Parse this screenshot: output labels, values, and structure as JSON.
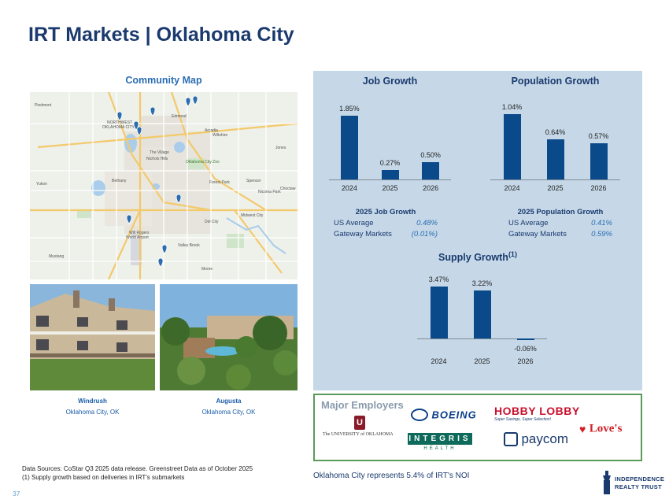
{
  "title": "IRT Markets | Oklahoma City",
  "map": {
    "title": "Community Map",
    "labels": [
      "Piedmont",
      "Northwest Oklahoma City",
      "Edmond",
      "Arcadia",
      "Wiltshire",
      "Jones",
      "The Village",
      "Nichols Hills",
      "Oklahoma City Zoo",
      "Yukon",
      "Bethany",
      "Forest Park",
      "Spencer",
      "Nicoma Park",
      "Choctaw",
      "Midwest City",
      "Del City",
      "Will Rogers World Airport",
      "Valley Brook",
      "Mustang",
      "Moore"
    ]
  },
  "properties": [
    {
      "name": "Windrush",
      "location": "Oklahoma City, OK"
    },
    {
      "name": "Augusta",
      "location": "Oklahoma City, OK"
    }
  ],
  "chart_data": [
    {
      "type": "bar",
      "title": "Job Growth",
      "categories": [
        "2024",
        "2025",
        "2026"
      ],
      "values": [
        1.85,
        0.27,
        0.5
      ],
      "labels": [
        "1.85%",
        "0.27%",
        "0.50%"
      ]
    },
    {
      "type": "bar",
      "title": "Population Growth",
      "categories": [
        "2024",
        "2025",
        "2026"
      ],
      "values": [
        1.04,
        0.64,
        0.57
      ],
      "labels": [
        "1.04%",
        "0.64%",
        "0.57%"
      ]
    },
    {
      "type": "bar",
      "title": "Supply Growth",
      "title_sup": "(1)",
      "categories": [
        "2024",
        "2025",
        "2026"
      ],
      "values": [
        3.47,
        3.22,
        -0.06
      ],
      "labels": [
        "3.47%",
        "3.22%",
        "-0.06%"
      ]
    }
  ],
  "job_stats": {
    "title": "2025 Job Growth",
    "rows": [
      {
        "label": "US Average",
        "value": "0.48%"
      },
      {
        "label": "Gateway Markets",
        "value": "(0.01%)"
      }
    ]
  },
  "pop_stats": {
    "title": "2025 Population Growth",
    "rows": [
      {
        "label": "US Average",
        "value": "0.41%"
      },
      {
        "label": "Gateway Markets",
        "value": "0.59%"
      }
    ]
  },
  "employers": {
    "title": "Major Employers",
    "ou_text": "The UNIVERSITY of OKLAHOMA",
    "boeing": "BOEING",
    "hobby_lobby": "HOBBY LOBBY",
    "hobby_tagline": "Super Savings, Super Selection!",
    "loves": "Love's",
    "integris": "INTEGRIS",
    "integris_sub": "HEALTH",
    "paycom": "paycom"
  },
  "footnotes": [
    "Data Sources: CoStar Q3 2025 data release. Greenstreet Data as of October 2025",
    "(1)  Supply growth based on deliveries in IRT's submarkets"
  ],
  "noi_text": "Oklahoma City represents 5.4% of IRT's NOI",
  "page_number": "37",
  "logo": {
    "line1": "INDEPENDENCE",
    "line2": "REALTY TRUST"
  },
  "colors": {
    "bar": "#0b4a8a",
    "title": "#1a3a6e",
    "panel": "#c6d8e8",
    "accent": "#2a6db0"
  }
}
